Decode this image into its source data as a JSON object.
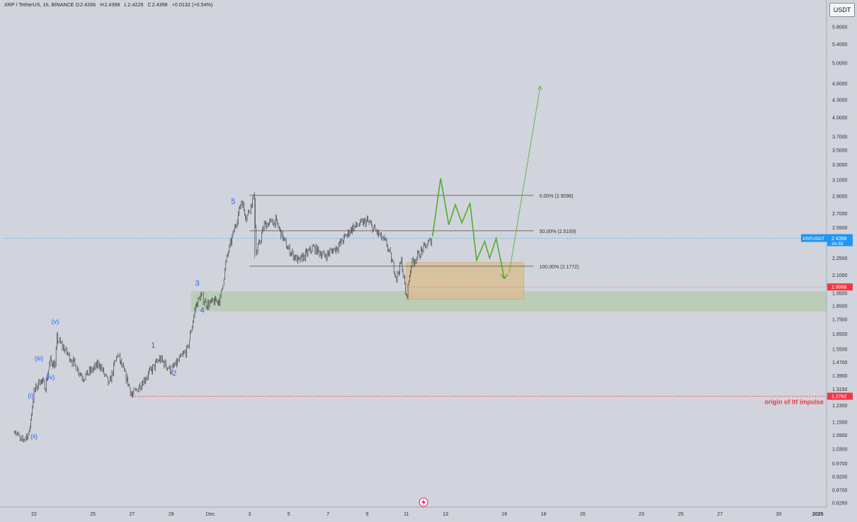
{
  "header": {
    "symbol": "XRP / TetherUS, 1h, BINANCE",
    "open_label": "O",
    "open": "2.4266",
    "high_label": "H",
    "high": "2.4398",
    "low_label": "L",
    "low": "2.4226",
    "close_label": "C",
    "close": "2.4398",
    "change": "+0.0132 (+0.54%)"
  },
  "currency_button": "USDT",
  "price_tag": {
    "symbol": "XRPUSDT",
    "price": "2.4398",
    "countdown": "34:39"
  },
  "red_tag": "1.9999",
  "origin_tag": "1.2782",
  "colors": {
    "background": "#d1d4dc",
    "candle": "#2a2a2e",
    "projection": "#4fae2e",
    "demand_zone": "#b7cbb0",
    "target_zone": "#d9bd91",
    "price_tag": "#2196f3",
    "alert_red": "#f23645",
    "wave_label": "#2962ff"
  },
  "chart_data": {
    "type": "candlestick",
    "scale": "log",
    "y_ticks": [
      "5.8000",
      "5.4000",
      "5.0000",
      "4.6000",
      "4.3000",
      "4.0000",
      "3.7000",
      "3.5000",
      "3.3000",
      "3.1000",
      "2.9000",
      "2.7000",
      "2.5500",
      "2.4000",
      "2.2500",
      "2.1000",
      "1.9500",
      "1.8500",
      "1.7500",
      "1.6500",
      "1.5500",
      "1.4700",
      "1.3900",
      "1.3150",
      "1.2300",
      "1.1500",
      "1.0900",
      "1.0300",
      "0.9700",
      "0.9200",
      "0.8700",
      "0.8260"
    ],
    "x_ticks": [
      "22",
      "25",
      "27",
      "29",
      "Dec",
      "3",
      "5",
      "7",
      "9",
      "11",
      "13",
      "16",
      "18",
      "20",
      "23",
      "25",
      "27",
      "30",
      "2025"
    ],
    "price_path": [
      {
        "x": "Nov 21 00:00",
        "y": 1.12
      },
      {
        "x": "Nov 21 08:00",
        "y": 1.06
      },
      {
        "x": "Nov 21 18:00",
        "y": 1.1
      },
      {
        "x": "Nov 22 00:00",
        "y": 1.3
      },
      {
        "x": "Nov 22 08:00",
        "y": 1.37
      },
      {
        "x": "Nov 22 14:00",
        "y": 1.33
      },
      {
        "x": "Nov 22 20:00",
        "y": 1.48
      },
      {
        "x": "Nov 23 02:00",
        "y": 1.45
      },
      {
        "x": "Nov 23 04:00",
        "y": 1.62
      },
      {
        "x": "Nov 24 00:00",
        "y": 1.47
      },
      {
        "x": "Nov 24 12:00",
        "y": 1.38
      },
      {
        "x": "Nov 25 08:00",
        "y": 1.46
      },
      {
        "x": "Nov 25 20:00",
        "y": 1.34
      },
      {
        "x": "Nov 26 06:00",
        "y": 1.52
      },
      {
        "x": "Nov 26 20:00",
        "y": 1.34
      },
      {
        "x": "Nov 27 00:00",
        "y": 1.28
      },
      {
        "x": "Nov 27 20:00",
        "y": 1.4
      },
      {
        "x": "Nov 28 10:00",
        "y": 1.49
      },
      {
        "x": "Nov 29 00:00",
        "y": 1.42
      },
      {
        "x": "Nov 29 20:00",
        "y": 1.55
      },
      {
        "x": "Nov 30 06:00",
        "y": 1.85
      },
      {
        "x": "Nov 30 12:00",
        "y": 1.93
      },
      {
        "x": "Nov 30 20:00",
        "y": 1.86
      },
      {
        "x": "Dec 1 12:00",
        "y": 1.9
      },
      {
        "x": "Dec 1 20:00",
        "y": 2.25
      },
      {
        "x": "Dec 2 08:00",
        "y": 2.62
      },
      {
        "x": "Dec 2 14:00",
        "y": 2.85
      },
      {
        "x": "Dec 2 20:00",
        "y": 2.66
      },
      {
        "x": "Dec 3 06:00",
        "y": 2.91
      },
      {
        "x": "Dec 3 08:00",
        "y": 2.28
      },
      {
        "x": "Dec 3 18:00",
        "y": 2.58
      },
      {
        "x": "Dec 4 08:00",
        "y": 2.62
      },
      {
        "x": "Dec 4 22:00",
        "y": 2.35
      },
      {
        "x": "Dec 5 12:00",
        "y": 2.22
      },
      {
        "x": "Dec 6 06:00",
        "y": 2.35
      },
      {
        "x": "Dec 6 20:00",
        "y": 2.27
      },
      {
        "x": "Dec 7 12:00",
        "y": 2.36
      },
      {
        "x": "Dec 8 06:00",
        "y": 2.55
      },
      {
        "x": "Dec 9 00:00",
        "y": 2.62
      },
      {
        "x": "Dec 9 12:00",
        "y": 2.5
      },
      {
        "x": "Dec 10 00:00",
        "y": 2.38
      },
      {
        "x": "Dec 10 12:00",
        "y": 2.08
      },
      {
        "x": "Dec 10 18:00",
        "y": 2.22
      },
      {
        "x": "Dec 11 00:00",
        "y": 1.91
      },
      {
        "x": "Dec 11 06:00",
        "y": 2.2
      },
      {
        "x": "Dec 11 20:00",
        "y": 2.33
      },
      {
        "x": "Dec 12 08:00",
        "y": 2.44
      }
    ],
    "fibonacci": [
      {
        "label": "0.00% (2.9096)",
        "price": 2.9096
      },
      {
        "label": "50.00% (2.5169)",
        "price": 2.5169
      },
      {
        "label": "100.00% (2.1772)",
        "price": 2.1772
      }
    ],
    "zones": [
      {
        "name": "demand",
        "from": 1.81,
        "to": 1.965,
        "start": "Nov 30",
        "end": "2025+"
      },
      {
        "name": "target",
        "from": 1.9,
        "to": 2.21,
        "start": "Dec 11",
        "end": "Dec 17"
      }
    ],
    "projection_path": [
      {
        "x": "Dec 12 08:00",
        "y": 2.46
      },
      {
        "x": "Dec 12 18:00",
        "y": 3.12
      },
      {
        "x": "Dec 13 04:00",
        "y": 2.58
      },
      {
        "x": "Dec 13 12:00",
        "y": 2.8
      },
      {
        "x": "Dec 13 20:00",
        "y": 2.6
      },
      {
        "x": "Dec 14 06:00",
        "y": 2.82
      },
      {
        "x": "Dec 14 14:00",
        "y": 2.23
      },
      {
        "x": "Dec 15 00:00",
        "y": 2.41
      },
      {
        "x": "Dec 15 06:00",
        "y": 2.25
      },
      {
        "x": "Dec 15 14:00",
        "y": 2.44
      },
      {
        "x": "Dec 16 00:00",
        "y": 2.07
      }
    ],
    "projection_arrow": [
      {
        "x": "Dec 16 06:00",
        "y": 2.12
      },
      {
        "x": "Dec 17 20:00",
        "y": 4.55
      }
    ],
    "origin_line": {
      "price": 1.2782,
      "label": "origin of ltf impulse"
    },
    "red_line": {
      "price": 1.9999
    },
    "current_price": 2.4398,
    "wave_labels": [
      {
        "text": "(i)",
        "x": "Nov 21 20:00",
        "y": 1.27
      },
      {
        "text": "(ii)",
        "x": "Nov 22 00:00",
        "y": 1.075
      },
      {
        "text": "(iii)",
        "x": "Nov 22 06:00",
        "y": 1.48
      },
      {
        "text": "(iv)",
        "x": "Nov 22 20:00",
        "y": 1.37
      },
      {
        "text": "(v)",
        "x": "Nov 23 02:00",
        "y": 1.72
      },
      {
        "text": "1",
        "x": "Nov 28 02:00",
        "y": 1.56
      },
      {
        "text": "2",
        "x": "Nov 29 04:00",
        "y": 1.39
      },
      {
        "text": "3",
        "x": "Nov 30 08:00",
        "y": 2.01
      },
      {
        "text": "4",
        "x": "Nov 30 14:00",
        "y": 1.8
      },
      {
        "text": "5",
        "x": "Dec 2 04:00",
        "y": 2.81
      }
    ]
  }
}
